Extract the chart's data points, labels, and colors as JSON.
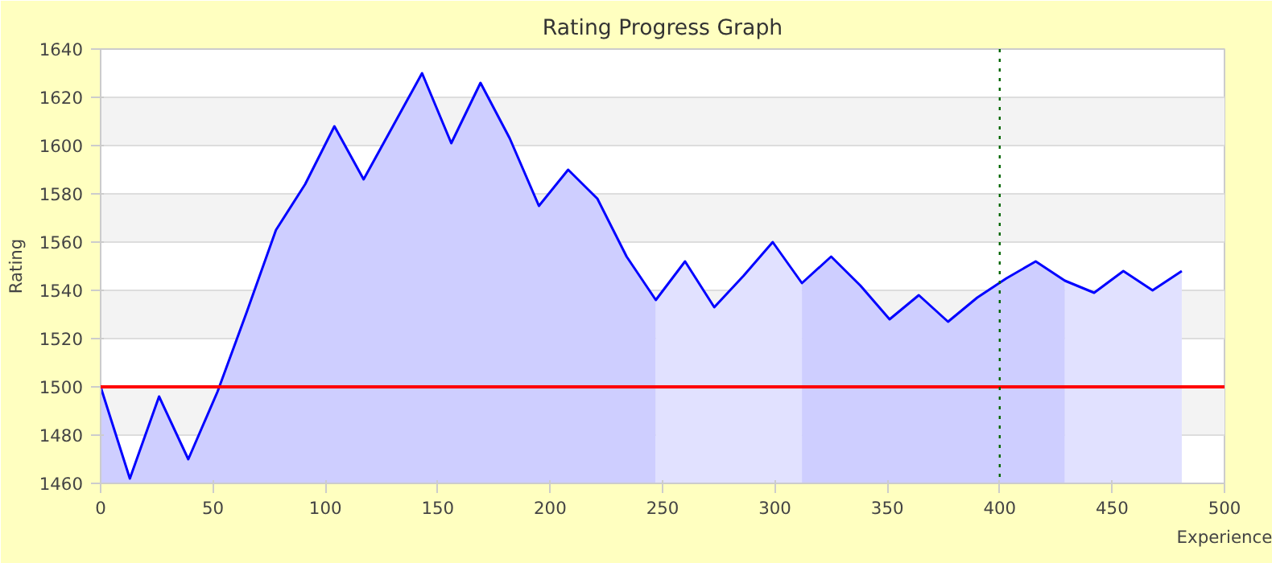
{
  "chart_data": {
    "type": "line",
    "title": "Rating Progress Graph",
    "xlabel": "Experience",
    "ylabel": "Rating",
    "xlim": [
      0,
      500
    ],
    "xticks": [
      0,
      50,
      100,
      150,
      200,
      250,
      300,
      350,
      400,
      450,
      500
    ],
    "ylim": [
      1460,
      1640
    ],
    "yticks": [
      1460,
      1480,
      1500,
      1520,
      1540,
      1560,
      1580,
      1600,
      1620,
      1640
    ],
    "grid": "y",
    "marker": "none",
    "line_style": "solid",
    "series": [
      {
        "type": "area",
        "color": "#ceceff",
        "x": [
          0,
          13,
          26,
          39,
          52,
          65,
          78,
          91,
          104,
          117,
          130,
          143,
          156,
          169,
          182,
          195,
          208,
          221,
          234,
          247
        ],
        "values": [
          1500,
          1462,
          1496,
          1470,
          1498,
          1531,
          1565,
          1584,
          1608,
          1586,
          1608,
          1630,
          1601,
          1626,
          1603,
          1575,
          1590,
          1578,
          1554,
          1536
        ]
      },
      {
        "type": "area",
        "color": "#e1e1ff",
        "x": [
          247,
          260,
          273,
          286,
          299,
          312
        ],
        "values": [
          1536,
          1552,
          1533,
          1546,
          1560,
          1543
        ]
      },
      {
        "type": "area",
        "color": "#ceceff",
        "x": [
          312,
          325,
          338,
          351,
          364,
          377,
          390,
          403,
          416,
          429
        ],
        "values": [
          1543,
          1554,
          1542,
          1528,
          1538,
          1527,
          1537,
          1545,
          1552,
          1544
        ]
      },
      {
        "type": "area",
        "color": "#e1e1ff",
        "x": [
          429,
          442,
          455,
          468,
          481
        ],
        "values": [
          1544,
          1539,
          1548,
          1540,
          1548
        ]
      },
      {
        "color": "#0000ff",
        "x": [
          0,
          13,
          26,
          39,
          52,
          65,
          78,
          91,
          104,
          117,
          130,
          143,
          156,
          169,
          182,
          195,
          208,
          221,
          234,
          247,
          260,
          273,
          286,
          299,
          312,
          325,
          338,
          351,
          364,
          377,
          390,
          403,
          416,
          429,
          442,
          455,
          468,
          481
        ],
        "values": [
          1500,
          1462,
          1496,
          1470,
          1498,
          1531,
          1565,
          1584,
          1608,
          1586,
          1608,
          1630,
          1601,
          1626,
          1603,
          1575,
          1590,
          1578,
          1554,
          1536,
          1552,
          1533,
          1546,
          1560,
          1543,
          1554,
          1542,
          1528,
          1538,
          1527,
          1537,
          1545,
          1552,
          1544,
          1539,
          1548,
          1540,
          1548
        ]
      }
    ],
    "ref_lines": [
      {
        "axis": "y",
        "value": 1500,
        "color": "#ff0000",
        "line_style": "solid"
      },
      {
        "axis": "x",
        "value": 400,
        "color": "#006600",
        "line_style": "dotted"
      }
    ]
  }
}
